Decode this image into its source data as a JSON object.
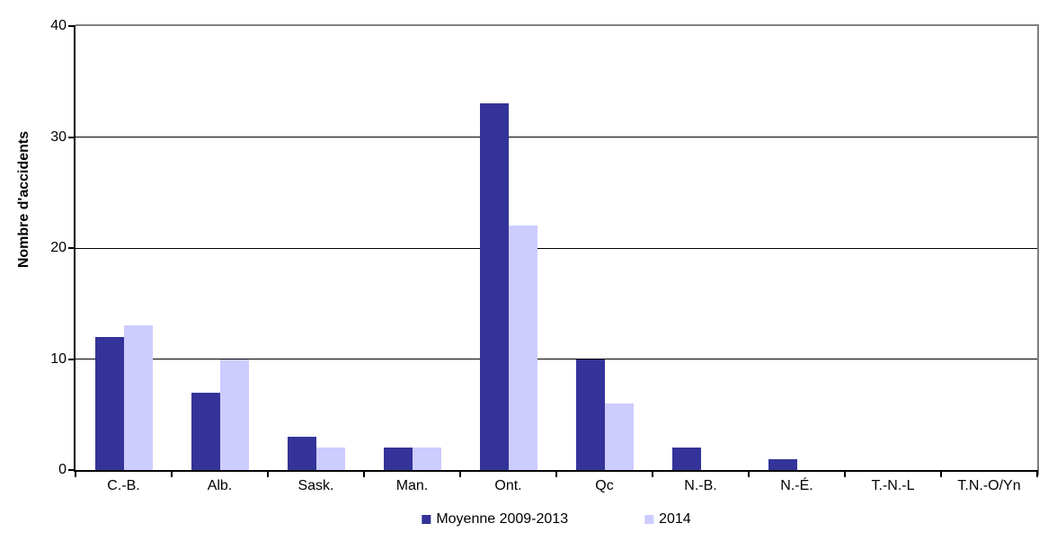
{
  "chart_data": {
    "type": "bar",
    "title": "",
    "xlabel": "",
    "ylabel": "Nombre d'accidents",
    "categories": [
      "C.-B.",
      "Alb.",
      "Sask.",
      "Man.",
      "Ont.",
      "Qc",
      "N.-B.",
      "N.-É.",
      "T.-N.-L",
      "T.N.-O/Yn"
    ],
    "series": [
      {
        "name": "Moyenne 2009-2013",
        "color": "#333399",
        "values": [
          12,
          7,
          3,
          2,
          33,
          10,
          2,
          1,
          0,
          0
        ]
      },
      {
        "name": "2014",
        "color": "#CCCCFF",
        "values": [
          13,
          10,
          2,
          2,
          22,
          6,
          0,
          0,
          0,
          0
        ]
      }
    ],
    "ylim": [
      0,
      40
    ],
    "yticks": [
      0,
      10,
      20,
      30,
      40
    ],
    "grid": true,
    "legend_position": "bottom",
    "colors": {
      "axis": "#000000",
      "gridline": "#000000",
      "plot_border": "#808080",
      "text": "#000000",
      "background": "#FFFFFF"
    }
  }
}
